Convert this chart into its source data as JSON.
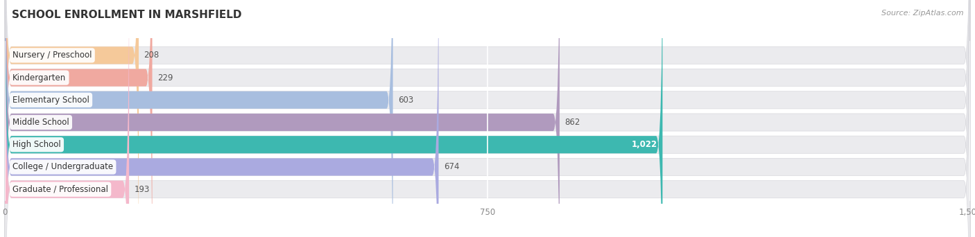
{
  "title": "SCHOOL ENROLLMENT IN MARSHFIELD",
  "source": "Source: ZipAtlas.com",
  "categories": [
    "Nursery / Preschool",
    "Kindergarten",
    "Elementary School",
    "Middle School",
    "High School",
    "College / Undergraduate",
    "Graduate / Professional"
  ],
  "values": [
    208,
    229,
    603,
    862,
    1022,
    674,
    193
  ],
  "bar_colors": [
    "#f5c99a",
    "#f0a9a0",
    "#a8bedf",
    "#b09abe",
    "#3db8b0",
    "#aaaae0",
    "#f4b8cb"
  ],
  "label_colors": [
    "#333333",
    "#333333",
    "#333333",
    "#333333",
    "#333333",
    "#333333",
    "#333333"
  ],
  "value_colors": [
    "#555555",
    "#555555",
    "#555555",
    "#555555",
    "#ffffff",
    "#555555",
    "#555555"
  ],
  "xlim": [
    0,
    1500
  ],
  "xticks": [
    0,
    750,
    1500
  ],
  "background_color": "#ffffff",
  "bar_bg_color": "#ebebee",
  "title_fontsize": 11,
  "source_fontsize": 8,
  "label_fontsize": 8.5,
  "value_fontsize": 8.5
}
